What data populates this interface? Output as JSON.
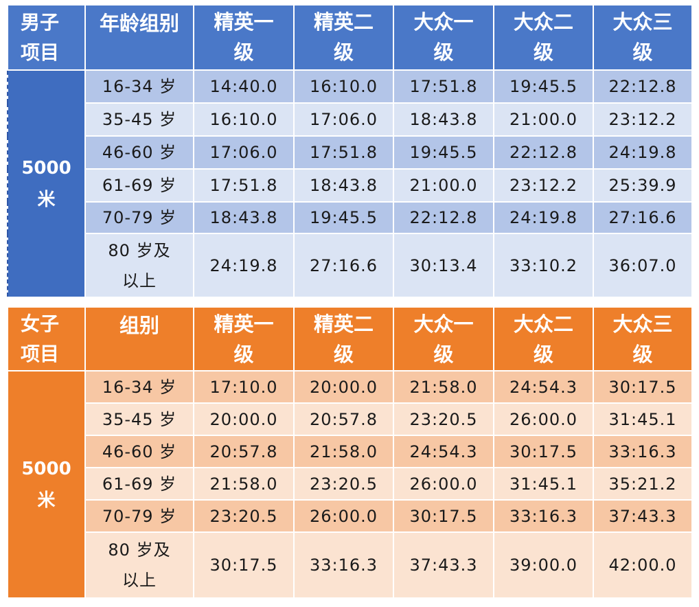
{
  "men": {
    "header": {
      "event_col": "男子\n项目",
      "group_col": "年龄组别",
      "levels": [
        "精英一\n级",
        "精英二\n级",
        "大众一\n级",
        "大众二\n级",
        "大众三\n级"
      ]
    },
    "event": "5000\n米",
    "rows": [
      {
        "age": "16-34 岁",
        "times": [
          "14:40.0",
          "16:10.0",
          "17:51.8",
          "19:45.5",
          "22:12.8"
        ]
      },
      {
        "age": "35-45 岁",
        "times": [
          "16:10.0",
          "17:06.0",
          "18:43.8",
          "21:00.0",
          "23:12.2"
        ]
      },
      {
        "age": "46-60 岁",
        "times": [
          "17:06.0",
          "17:51.8",
          "19:45.5",
          "22:12.8",
          "24:19.8"
        ]
      },
      {
        "age": "61-69 岁",
        "times": [
          "17:51.8",
          "18:43.8",
          "21:00.0",
          "23:12.2",
          "25:39.9"
        ]
      },
      {
        "age": "70-79 岁",
        "times": [
          "18:43.8",
          "19:45.5",
          "22:12.8",
          "24:19.8",
          "27:16.6"
        ]
      },
      {
        "age": "80 岁及\n以上",
        "times": [
          "24:19.8",
          "27:16.6",
          "30:13.4",
          "33:10.2",
          "36:07.0"
        ]
      }
    ]
  },
  "women": {
    "header": {
      "event_col": "女子\n项目",
      "group_col": "组别",
      "levels": [
        "精英一\n级",
        "精英二\n级",
        "大众一\n级",
        "大众二\n级",
        "大众三\n级"
      ]
    },
    "event": "5000\n米",
    "rows": [
      {
        "age": "16-34 岁",
        "times": [
          "17:10.0",
          "20:00.0",
          "21:58.0",
          "24:54.3",
          "30:17.5"
        ]
      },
      {
        "age": "35-45 岁",
        "times": [
          "20:00.0",
          "20:57.8",
          "23:20.5",
          "26:00.0",
          "31:45.1"
        ]
      },
      {
        "age": "46-60 岁",
        "times": [
          "20:57.8",
          "21:58.0",
          "24:54.3",
          "30:17.5",
          "33:16.3"
        ]
      },
      {
        "age": "61-69 岁",
        "times": [
          "21:58.0",
          "23:20.5",
          "26:00.0",
          "31:45.1",
          "35:21.2"
        ]
      },
      {
        "age": "70-79 岁",
        "times": [
          "23:20.5",
          "26:00.0",
          "30:17.5",
          "33:16.3",
          "37:43.3"
        ]
      },
      {
        "age": "80 岁及\n以上",
        "times": [
          "30:17.5",
          "33:16.3",
          "37:43.3",
          "39:00.0",
          "42:00.0"
        ]
      }
    ]
  }
}
